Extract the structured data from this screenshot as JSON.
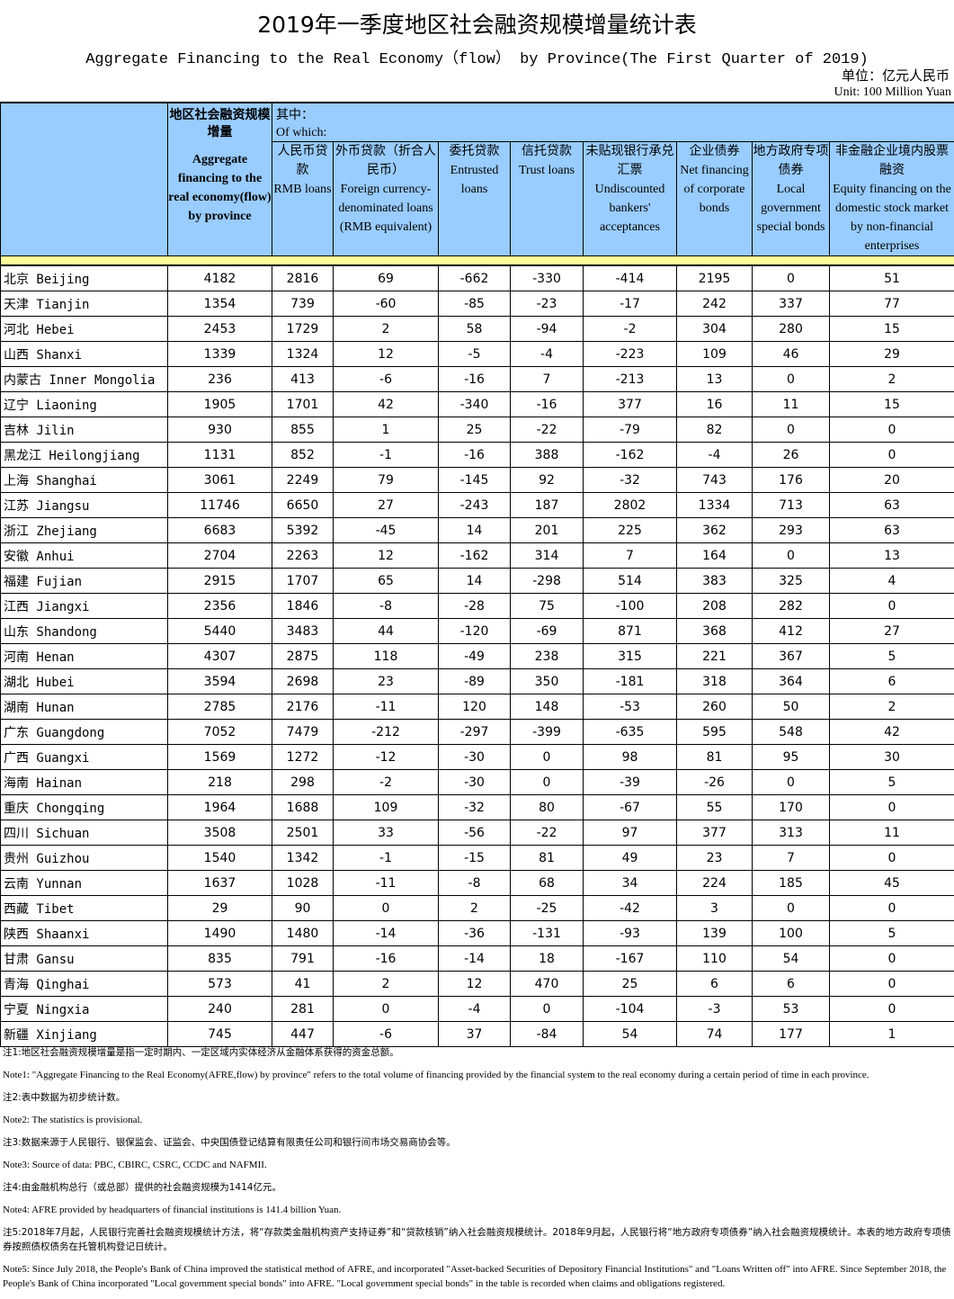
{
  "title": "2019年一季度地区社会融资规模增量统计表",
  "subtitle": "Aggregate Financing to the Real Economy（flow） by Province(The First Quarter of 2019)",
  "unit_cn": "单位：亿元人民币",
  "unit_en": "Unit: 100 Million Yuan",
  "header": {
    "aggregate_cn": "地区社会融资规模增量",
    "aggregate_en": "Aggregate financing to the real economy(flow) by province",
    "of_which_cn": "其中：",
    "of_which_en": "Of which:",
    "columns": [
      {
        "cn": "人民币贷款",
        "en": "RMB loans"
      },
      {
        "cn": "外币贷款（折合人民币）",
        "en": "Foreign currency-denominated loans (RMB equivalent)"
      },
      {
        "cn": "委托贷款",
        "en": "Entrusted loans"
      },
      {
        "cn": "信托贷款",
        "en": "Trust loans"
      },
      {
        "cn": "未贴现银行承兑汇票",
        "en": "Undiscounted bankers' acceptances"
      },
      {
        "cn": "企业债券",
        "en": "Net financing of corporate bonds"
      },
      {
        "cn": "地方政府专项债券",
        "en": "Local government special bonds"
      },
      {
        "cn": "非金融企业境内股票融资",
        "en": "Equity financing on the domestic stock market by non-financial enterprises"
      }
    ]
  },
  "rows": [
    [
      "北京 Beijing",
      "4182",
      "2816",
      "69",
      "-662",
      "-330",
      "-414",
      "2195",
      "0",
      "51"
    ],
    [
      "天津 Tianjin",
      "1354",
      "739",
      "-60",
      "-85",
      "-23",
      "-17",
      "242",
      "337",
      "77"
    ],
    [
      "河北 Hebei",
      "2453",
      "1729",
      "2",
      "58",
      "-94",
      "-2",
      "304",
      "280",
      "15"
    ],
    [
      "山西 Shanxi",
      "1339",
      "1324",
      "12",
      "-5",
      "-4",
      "-223",
      "109",
      "46",
      "29"
    ],
    [
      "内蒙古 Inner Mongolia",
      "236",
      "413",
      "-6",
      "-16",
      "7",
      "-213",
      "13",
      "0",
      "2"
    ],
    [
      "辽宁 Liaoning",
      "1905",
      "1701",
      "42",
      "-340",
      "-16",
      "377",
      "16",
      "11",
      "15"
    ],
    [
      "吉林 Jilin",
      "930",
      "855",
      "1",
      "25",
      "-22",
      "-79",
      "82",
      "0",
      "0"
    ],
    [
      "黑龙江 Heilongjiang",
      "1131",
      "852",
      "-1",
      "-16",
      "388",
      "-162",
      "-4",
      "26",
      "0"
    ],
    [
      "上海 Shanghai",
      "3061",
      "2249",
      "79",
      "-145",
      "92",
      "-32",
      "743",
      "176",
      "20"
    ],
    [
      "江苏 Jiangsu",
      "11746",
      "6650",
      "27",
      "-243",
      "187",
      "2802",
      "1334",
      "713",
      "63"
    ],
    [
      "浙江 Zhejiang",
      "6683",
      "5392",
      "-45",
      "14",
      "201",
      "225",
      "362",
      "293",
      "63"
    ],
    [
      "安徽 Anhui",
      "2704",
      "2263",
      "12",
      "-162",
      "314",
      "7",
      "164",
      "0",
      "13"
    ],
    [
      "福建 Fujian",
      "2915",
      "1707",
      "65",
      "14",
      "-298",
      "514",
      "383",
      "325",
      "4"
    ],
    [
      "江西 Jiangxi",
      "2356",
      "1846",
      "-8",
      "-28",
      "75",
      "-100",
      "208",
      "282",
      "0"
    ],
    [
      "山东 Shandong",
      "5440",
      "3483",
      "44",
      "-120",
      "-69",
      "871",
      "368",
      "412",
      "27"
    ],
    [
      "河南 Henan",
      "4307",
      "2875",
      "118",
      "-49",
      "238",
      "315",
      "221",
      "367",
      "5"
    ],
    [
      "湖北 Hubei",
      "3594",
      "2698",
      "23",
      "-89",
      "350",
      "-181",
      "318",
      "364",
      "6"
    ],
    [
      "湖南 Hunan",
      "2785",
      "2176",
      "-11",
      "120",
      "148",
      "-53",
      "260",
      "50",
      "2"
    ],
    [
      "广东 Guangdong",
      "7052",
      "7479",
      "-212",
      "-297",
      "-399",
      "-635",
      "595",
      "548",
      "42"
    ],
    [
      "广西 Guangxi",
      "1569",
      "1272",
      "-12",
      "-30",
      "0",
      "98",
      "81",
      "95",
      "30"
    ],
    [
      "海南 Hainan",
      "218",
      "298",
      "-2",
      "-30",
      "0",
      "-39",
      "-26",
      "0",
      "5"
    ],
    [
      "重庆 Chongqing",
      "1964",
      "1688",
      "109",
      "-32",
      "80",
      "-67",
      "55",
      "170",
      "0"
    ],
    [
      "四川 Sichuan",
      "3508",
      "2501",
      "33",
      "-56",
      "-22",
      "97",
      "377",
      "313",
      "11"
    ],
    [
      "贵州 Guizhou",
      "1540",
      "1342",
      "-1",
      "-15",
      "81",
      "49",
      "23",
      "7",
      "0"
    ],
    [
      "云南 Yunnan",
      "1637",
      "1028",
      "-11",
      "-8",
      "68",
      "34",
      "224",
      "185",
      "45"
    ],
    [
      "西藏 Tibet",
      "29",
      "90",
      "0",
      "2",
      "-25",
      "-42",
      "3",
      "0",
      "0"
    ],
    [
      "陕西 Shaanxi",
      "1490",
      "1480",
      "-14",
      "-36",
      "-131",
      "-93",
      "139",
      "100",
      "5"
    ],
    [
      "甘肃 Gansu",
      "835",
      "791",
      "-16",
      "-14",
      "18",
      "-167",
      "110",
      "54",
      "0"
    ],
    [
      "青海 Qinghai",
      "573",
      "41",
      "2",
      "12",
      "470",
      "25",
      "6",
      "6",
      "0"
    ],
    [
      "宁夏 Ningxia",
      "240",
      "281",
      "0",
      "-4",
      "0",
      "-104",
      "-3",
      "53",
      "0"
    ],
    [
      "新疆 Xinjiang",
      "745",
      "447",
      "-6",
      "37",
      "-84",
      "54",
      "74",
      "177",
      "1"
    ]
  ],
  "notes": [
    {
      "text": "注1:地区社会融资规模增量是指一定时期内、一定区域内实体经济从金融体系获得的资金总额。",
      "cn": true
    },
    {
      "text": "Note1: \"Aggregate Financing to the Real Economy(AFRE,flow) by province\" refers to the total volume of financing provided by the financial system to the real economy during a certain period of time in each province.",
      "cn": false
    },
    {
      "text": "注2:表中数据为初步统计数。",
      "cn": true
    },
    {
      "text": "Note2: The statistics is provisional.",
      "cn": false
    },
    {
      "text": "注3:数据来源于人民银行、银保监会、证监会、中央国债登记结算有限责任公司和银行间市场交易商协会等。",
      "cn": true
    },
    {
      "text": "Note3: Source of data: PBC, CBIRC, CSRC, CCDC and NAFMII.",
      "cn": false
    },
    {
      "text": "注4:由金融机构总行（或总部）提供的社会融资规模为1414亿元。",
      "cn": true
    },
    {
      "text": "Note4: AFRE provided by headquarters of financial institutions is 141.4 billion Yuan.",
      "cn": false
    },
    {
      "text": "注5:2018年7月起，人民银行完善社会融资规模统计方法，将“存款类金融机构资产支持证券”和“贷款核销”纳入社会融资规模统计。2018年9月起，人民银行将“地方政府专项债券”纳入社会融资规模统计。本表的地方政府专项债券按照债权债务在托管机构登记日统计。",
      "cn": true
    },
    {
      "text": "Note5: Since July 2018, the People's Bank of China improved the statistical method of AFRE, and incorporated \"Asset-backed Securities of Depository Financial Institutions\" and \"Loans Written off\" into AFRE. Since September 2018, the People's Bank of China incorporated \"Local government special bonds\" into AFRE. \"Local government special bonds\" in the table is recorded when claims and obligations registered.",
      "cn": false
    }
  ],
  "colors": {
    "header_bg": "#99ccff",
    "separator_bg": "#ffff99"
  }
}
